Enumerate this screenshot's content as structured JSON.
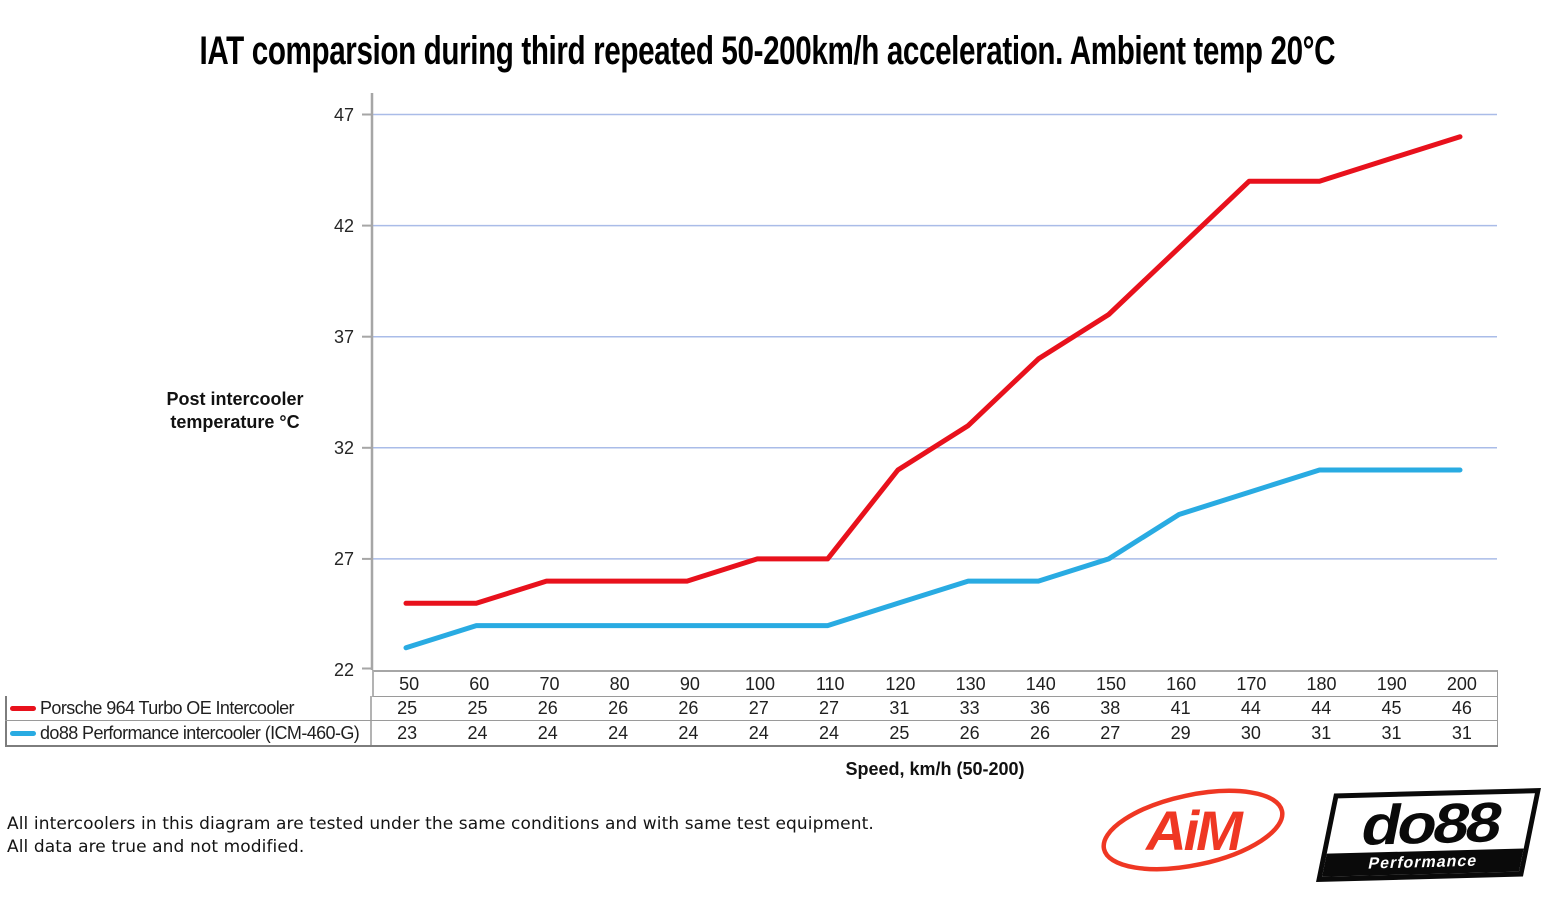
{
  "title": "IAT comparsion during third repeated 50-200km/h acceleration. Ambient temp 20°C",
  "y_axis": {
    "label_line1": "Post intercooler",
    "label_line2": "temperature °C",
    "tick_labels": [
      47,
      42,
      37,
      32,
      27,
      22
    ]
  },
  "x_axis": {
    "label": "Speed, km/h (50-200)"
  },
  "chart_data": {
    "type": "line",
    "categories": [
      50,
      60,
      70,
      80,
      90,
      100,
      110,
      120,
      130,
      140,
      150,
      160,
      170,
      180,
      190,
      200
    ],
    "series": [
      {
        "name": "Porsche 964 Turbo OE Intercooler",
        "color": "#e8111c",
        "values": [
          25,
          25,
          26,
          26,
          26,
          27,
          27,
          31,
          33,
          36,
          38,
          41,
          44,
          44,
          45,
          46
        ]
      },
      {
        "name": "do88 Performance intercooler (ICM-460-G)",
        "color": "#29abe2",
        "values": [
          23,
          24,
          24,
          24,
          24,
          24,
          24,
          25,
          26,
          26,
          27,
          29,
          30,
          31,
          31,
          31
        ]
      }
    ],
    "title": "IAT comparsion during third repeated 50-200km/h acceleration. Ambient temp 20°C",
    "xlabel": "Speed, km/h (50-200)",
    "ylabel": "Post intercooler temperature °C",
    "ylim": [
      22,
      47
    ],
    "ytick_step": 5,
    "grid": "horizontal",
    "legend_position": "table-left"
  },
  "style": {
    "grid_color": "#aabce8",
    "axis_color": "#a6a6a6",
    "line_width": 5
  },
  "footer": {
    "note_line1": "All intercoolers in this diagram are tested under the same conditions and with same test equipment.",
    "note_line2": "All data are true and not modified."
  },
  "logos": {
    "aim": {
      "text": "AiM",
      "color": "#ef3723"
    },
    "do88": {
      "text": "do88",
      "subtext": "Performance",
      "color": "#0a0a0a"
    }
  }
}
